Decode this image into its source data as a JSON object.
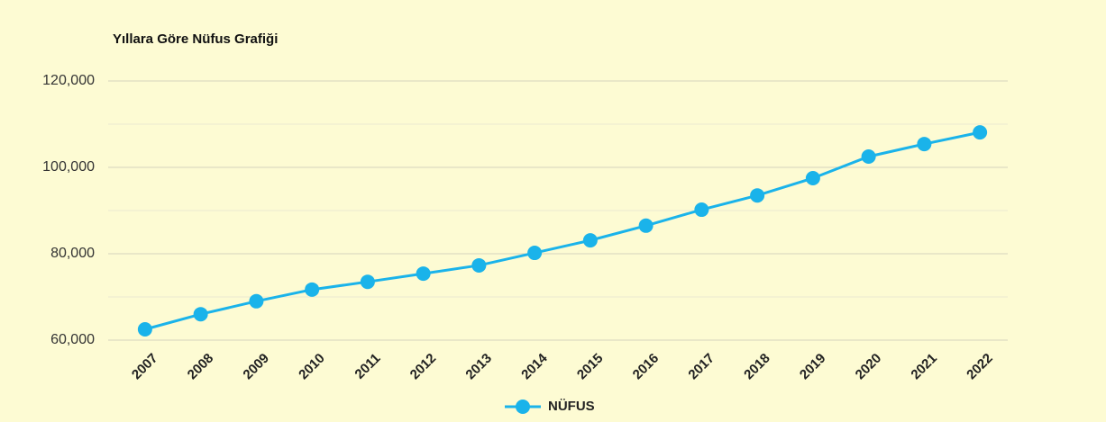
{
  "chart_data": {
    "type": "line",
    "title": "Yıllara Göre Nüfus Grafiği",
    "categories": [
      "2007",
      "2008",
      "2009",
      "2010",
      "2011",
      "2012",
      "2013",
      "2014",
      "2015",
      "2016",
      "2017",
      "2018",
      "2019",
      "2020",
      "2021",
      "2022"
    ],
    "series": [
      {
        "name": "NÜFUS",
        "color": "#1ab3ea",
        "values": [
          62500,
          66000,
          69000,
          71700,
          73500,
          75400,
          77300,
          80200,
          83100,
          86500,
          90200,
          93500,
          97500,
          102500,
          105400,
          108100
        ]
      }
    ],
    "ylim": [
      60000,
      120000
    ],
    "yticks": [
      {
        "value": 60000,
        "label": "60,000"
      },
      {
        "value": 80000,
        "label": "80,000"
      },
      {
        "value": 100000,
        "label": "100,000"
      },
      {
        "value": 120000,
        "label": "120,000"
      }
    ],
    "minor_yticks": [
      70000,
      90000,
      110000
    ],
    "grid": true,
    "legend": "bottom"
  }
}
